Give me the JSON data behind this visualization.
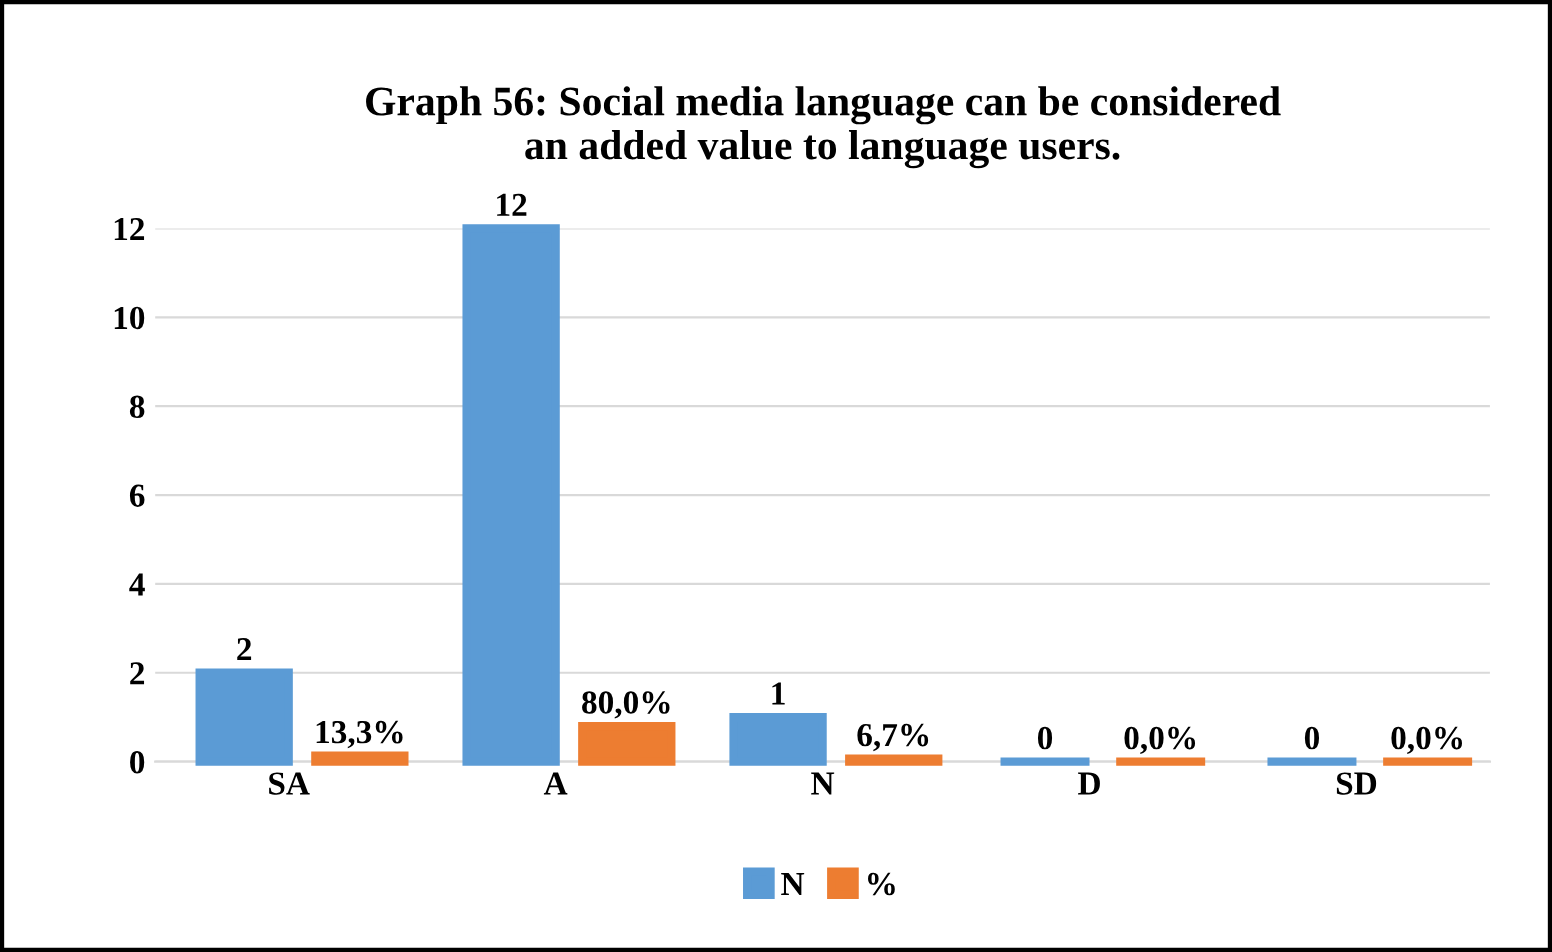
{
  "chart_data": {
    "type": "bar",
    "title": "Graph 56: Social media language can be considered\nan added value to language users.",
    "categories": [
      "SA",
      "A",
      "N",
      "D",
      "SD"
    ],
    "series": [
      {
        "name": "N",
        "color": "#5b9bd5",
        "values": [
          2,
          12,
          1,
          0,
          0
        ],
        "value_labels": [
          "2",
          "12",
          "1",
          "0",
          "0"
        ]
      },
      {
        "name": "%",
        "color": "#ed7d31",
        "values": [
          0.133,
          0.8,
          0.067,
          0,
          0
        ],
        "value_labels": [
          "13,3%",
          "80,0%",
          "6,7%",
          "0,0%",
          "0,0%"
        ]
      }
    ],
    "ylim": [
      0,
      12
    ],
    "yticks": [
      0,
      2,
      4,
      6,
      8,
      10,
      12
    ],
    "grid": "y",
    "legend": "bottom"
  }
}
